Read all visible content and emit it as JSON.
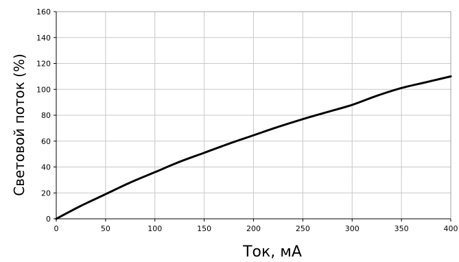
{
  "chart_data": {
    "type": "line",
    "title": "",
    "xlabel": "Ток, мА",
    "ylabel": "Световой поток (%)",
    "xlim": [
      0,
      400
    ],
    "ylim": [
      0,
      160
    ],
    "xticks": [
      0,
      50,
      100,
      150,
      200,
      250,
      300,
      350,
      400
    ],
    "yticks": [
      0,
      20,
      40,
      60,
      80,
      100,
      120,
      140,
      160
    ],
    "grid": true,
    "series": [
      {
        "x": [
          0,
          25,
          50,
          75,
          100,
          125,
          150,
          175,
          200,
          225,
          250,
          275,
          300,
          325,
          350,
          375,
          400
        ],
        "y": [
          0,
          10,
          19,
          28,
          36,
          44,
          51,
          58,
          64.5,
          71,
          77,
          82.5,
          88,
          95,
          101,
          105.5,
          110
        ]
      }
    ]
  },
  "colors": {
    "line": "#000000",
    "grid": "#c8c8c8",
    "axis": "#000000",
    "background": "#ffffff"
  }
}
